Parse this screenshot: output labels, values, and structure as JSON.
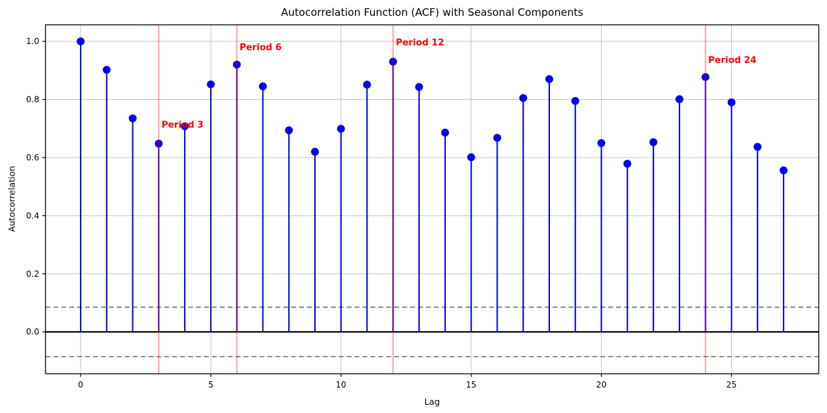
{
  "chart_data": {
    "type": "stem",
    "title": "Autocorrelation Function (ACF) with Seasonal Components",
    "xlabel": "Lag",
    "ylabel": "Autocorrelation",
    "x": [
      0,
      1,
      2,
      3,
      4,
      5,
      6,
      7,
      8,
      9,
      10,
      11,
      12,
      13,
      14,
      15,
      16,
      17,
      18,
      19,
      20,
      21,
      22,
      23,
      24,
      25,
      26,
      27
    ],
    "values": [
      1.0,
      0.902,
      0.735,
      0.648,
      0.708,
      0.852,
      0.92,
      0.845,
      0.694,
      0.62,
      0.699,
      0.851,
      0.93,
      0.843,
      0.686,
      0.601,
      0.668,
      0.805,
      0.87,
      0.795,
      0.65,
      0.579,
      0.653,
      0.801,
      0.877,
      0.79,
      0.637,
      0.556
    ],
    "confidence_upper": 0.085,
    "confidence_lower": -0.085,
    "zero_line": 0.0,
    "seasonal_periods": [
      3,
      6,
      12,
      24
    ],
    "annotations": [
      {
        "label": "Period 3",
        "lag": 3,
        "y": 0.713
      },
      {
        "label": "Period 6",
        "lag": 6,
        "y": 0.98
      },
      {
        "label": "Period 12",
        "lag": 12,
        "y": 0.997
      },
      {
        "label": "Period 24",
        "lag": 24,
        "y": 0.936
      }
    ],
    "xlim": [
      -1.35,
      28.35
    ],
    "ylim": [
      -0.144,
      1.057
    ],
    "xticks": [
      0,
      5,
      10,
      15,
      20,
      25
    ],
    "yticks": [
      0.0,
      0.2,
      0.4,
      0.6,
      0.8,
      1.0
    ],
    "grid": true,
    "legend": "none",
    "colors": {
      "stem": "#0000ee",
      "marker": "#0000ee",
      "period_line": "#ff0000",
      "period_line_alpha": 0.4,
      "annotation_text": "#ff0000",
      "confidence_line": "#7f7f7f",
      "zero_line": "#000000",
      "grid": "#c4c4c4",
      "spine": "#000000",
      "background": "#ffffff"
    }
  }
}
